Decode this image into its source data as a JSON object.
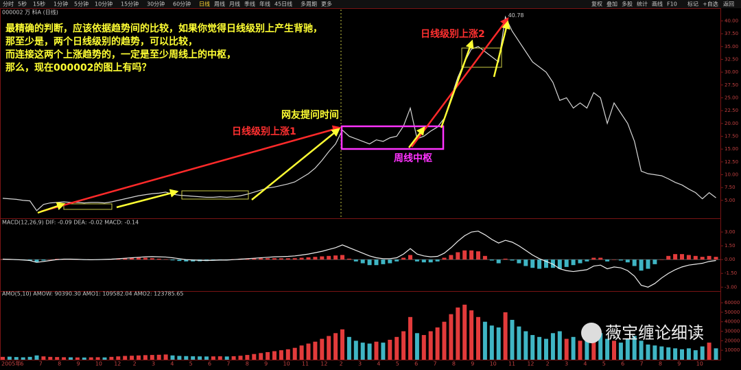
{
  "toolbar": {
    "left": [
      "分时",
      "5秒",
      "15秒",
      "1分钟",
      "5分钟",
      "10分钟",
      "15分钟",
      "30分钟",
      "60分钟",
      "日线",
      "周线",
      "月线",
      "季线",
      "年线",
      "45日线",
      "多周期",
      "更多"
    ],
    "right": [
      "复权",
      "叠加",
      "多股",
      "统计",
      "画线",
      "F10",
      "标记",
      "+自选",
      "返回"
    ]
  },
  "annotations": {
    "question": [
      "最精确的判断，应该依据趋势间的比较，如果你觉得日线级别上产生背驰，",
      "那至少是，两个日线级别的趋势，可以比较，",
      "而连接这两个上涨趋势的，一定是至少周线上的中枢，",
      "那么，现在000002的图上有吗？"
    ],
    "asked": "网友提问时间",
    "rise1": "日线级别上涨1",
    "rise2": "日线级别上涨2",
    "pivot": "周线中枢",
    "watermark": "薇宝缠论细读"
  },
  "time_axis": [
    "2005年",
    "6",
    "7",
    "8",
    "9",
    "10",
    "12",
    "2",
    "3",
    "4",
    "5",
    "6",
    "7",
    "8",
    "9",
    "10",
    "11",
    "12",
    "2",
    "3",
    "4",
    "5",
    "6",
    "7",
    "8",
    "9",
    "10",
    "11",
    "12",
    "2",
    "3",
    "4",
    "5",
    "6",
    "7",
    "8",
    "9",
    "10"
  ],
  "chart_data": [
    {
      "type": "line",
      "title": "000002 万 科A (日线)",
      "color": "#d8d8d8",
      "ylim": [
        1.5,
        42.2
      ],
      "yticks": [
        {
          "value": 5,
          "label": "5.00"
        },
        {
          "value": 7.5,
          "label": "7.50"
        },
        {
          "value": 10,
          "label": "10.00"
        },
        {
          "value": 12.5,
          "label": "12.50"
        },
        {
          "value": 15,
          "label": "15.00"
        },
        {
          "value": 17.5,
          "label": "17.50"
        },
        {
          "value": 20,
          "label": "20.00"
        },
        {
          "value": 22.5,
          "label": "22.50"
        },
        {
          "value": 25,
          "label": "25.00"
        },
        {
          "value": 27.5,
          "label": "27.50"
        },
        {
          "value": 30,
          "label": "30.00"
        },
        {
          "value": 32.5,
          "label": "32.50"
        },
        {
          "value": 35,
          "label": "35.00"
        },
        {
          "value": 37.5,
          "label": "37.50"
        },
        {
          "value": 40,
          "label": "40.00"
        }
      ],
      "values": [
        5.4,
        5.3,
        5.2,
        5.0,
        4.9,
        3.0,
        4.2,
        4.5,
        4.6,
        4.7,
        4.6,
        4.6,
        4.5,
        4.6,
        4.6,
        4.5,
        4.7,
        5.0,
        5.3,
        5.6,
        5.9,
        6.1,
        6.3,
        6.4,
        6.6,
        6.2,
        6.0,
        5.9,
        5.8,
        5.7,
        5.6,
        5.6,
        5.7,
        5.6,
        5.7,
        5.9,
        6.2,
        6.6,
        7.0,
        7.4,
        7.6,
        7.9,
        8.2,
        8.6,
        9.4,
        10.2,
        11.3,
        12.8,
        14.5,
        16.0,
        18.7,
        17.5,
        17.0,
        16.5,
        16.0,
        16.8,
        16.5,
        17.2,
        17.5,
        19.5,
        23.0,
        17.0,
        17.5,
        18.5,
        19.3,
        21,
        25,
        29,
        32,
        34.5,
        35,
        34,
        33,
        32,
        40.78,
        38,
        36,
        34,
        32,
        31,
        30,
        28,
        24.5,
        25,
        23,
        24,
        23,
        26,
        25,
        20,
        24,
        22,
        20,
        16.5,
        10.7,
        10.2,
        10,
        9.8,
        9.2,
        8.5,
        8,
        7.2,
        6.5,
        5.3,
        6.5,
        5.5
      ]
    },
    {
      "type": "bar",
      "title": "MACD(12,26,9) DIF: -0.09 DEA: -0.02 MACD: -0.14",
      "ylim": [
        -3.5,
        3.6
      ],
      "yticks": [
        {
          "value": 3,
          "label": "3.00"
        },
        {
          "value": 1.5,
          "label": "1.50"
        },
        {
          "value": 0,
          "label": "0.00"
        },
        {
          "value": -1.5,
          "label": "-1.50"
        },
        {
          "value": -3,
          "label": "-3.00"
        }
      ],
      "up_color": "#e23b3b",
      "down_color": "#3fb5c4",
      "series": [
        {
          "name": "MACD",
          "type": "bar",
          "values": [
            0.05,
            0.02,
            -0.02,
            -0.06,
            -0.1,
            -0.3,
            -0.1,
            0,
            0.08,
            0.08,
            0.06,
            0.02,
            -0.03,
            -0.05,
            -0.02,
            0.02,
            0.05,
            0.12,
            0.15,
            0.18,
            0.2,
            0.2,
            0.15,
            0.1,
            0.05,
            -0.08,
            -0.15,
            -0.2,
            -0.2,
            -0.18,
            -0.15,
            -0.1,
            -0.05,
            -0.03,
            0.05,
            0.1,
            0.12,
            0.15,
            0.15,
            0.15,
            0.15,
            0.14,
            0.14,
            0.15,
            0.2,
            0.25,
            0.3,
            0.35,
            0.4,
            0.45,
            0.5,
            0.1,
            -0.2,
            -0.4,
            -0.6,
            -0.6,
            -0.5,
            -0.4,
            -0.2,
            0.2,
            0.5,
            -0.2,
            -0.3,
            -0.3,
            -0.2,
            0.2,
            0.5,
            0.8,
            1,
            1,
            0.9,
            0.4,
            -0.1,
            -0.4,
            0.1,
            -0.1,
            -0.4,
            -0.7,
            -0.9,
            -1,
            -0.9,
            -0.9,
            -1,
            -0.8,
            -0.6,
            -0.4,
            -0.2,
            0.2,
            0.2,
            -0.2,
            0,
            -0.1,
            -0.3,
            -0.7,
            -1.2,
            -1,
            -0.5,
            0,
            0.4,
            0.6,
            0.6,
            0.5,
            0.4,
            0.3,
            0.4,
            0.3
          ]
        },
        {
          "name": "DIF",
          "type": "line",
          "color": "#f0f0f0",
          "values": [
            0.05,
            0.03,
            0,
            -0.05,
            -0.1,
            -0.3,
            -0.2,
            -0.1,
            0,
            0.05,
            0.05,
            0.03,
            0,
            -0.02,
            0,
            0.02,
            0.05,
            0.1,
            0.15,
            0.2,
            0.25,
            0.3,
            0.32,
            0.3,
            0.28,
            0.2,
            0.1,
            0,
            -0.05,
            -0.08,
            -0.1,
            -0.08,
            -0.05,
            -0.05,
            0,
            0.05,
            0.1,
            0.15,
            0.2,
            0.25,
            0.3,
            0.32,
            0.35,
            0.4,
            0.5,
            0.6,
            0.75,
            0.9,
            1.1,
            1.3,
            1.6,
            1.3,
            1,
            0.7,
            0.4,
            0.2,
            0.1,
            0.1,
            0.2,
            0.6,
            1.2,
            0.6,
            0.4,
            0.3,
            0.35,
            0.7,
            1.3,
            2,
            2.6,
            3,
            3.1,
            2.7,
            2.2,
            1.8,
            2.1,
            1.9,
            1.5,
            1,
            0.5,
            0.1,
            -0.2,
            -0.5,
            -1,
            -1.2,
            -1.3,
            -1.2,
            -1.1,
            -0.7,
            -0.6,
            -1,
            -0.8,
            -0.9,
            -1.2,
            -1.8,
            -2.8,
            -3,
            -2.6,
            -2,
            -1.5,
            -1.1,
            -0.8,
            -0.6,
            -0.5,
            -0.4,
            -0.2,
            -0.1
          ]
        }
      ]
    },
    {
      "type": "bar",
      "title": "AMO(5,10) AMOW: 90390.30 AMO1: 109582.04 AMO2: 123785.65",
      "ylim": [
        0,
        68000
      ],
      "yticks": [
        10000,
        20000,
        30000,
        40000,
        50000,
        60000
      ],
      "up_color": "#e23b3b",
      "down_color": "#3fb5c4",
      "values": [
        3000,
        3200,
        2800,
        2500,
        3000,
        4500,
        3500,
        3000,
        2800,
        2600,
        2500,
        2400,
        2300,
        2500,
        2600,
        2400,
        3000,
        3500,
        4000,
        4200,
        4500,
        4800,
        5000,
        5200,
        5500,
        4500,
        4000,
        3800,
        3600,
        3500,
        3400,
        3500,
        3600,
        3400,
        3700,
        4200,
        5000,
        6000,
        7000,
        8000,
        9000,
        10000,
        11000,
        12500,
        15000,
        17000,
        19000,
        22000,
        25000,
        28000,
        32000,
        24000,
        20000,
        18000,
        17000,
        19000,
        18000,
        21000,
        24000,
        30000,
        45000,
        28000,
        26000,
        30000,
        34000,
        40000,
        48000,
        55000,
        58000,
        52000,
        45000,
        40000,
        36000,
        34000,
        50000,
        42000,
        35000,
        30000,
        26000,
        24000,
        22000,
        28000,
        30000,
        22000,
        24000,
        20000,
        26000,
        24000,
        28000,
        22000,
        20000,
        18000,
        22000,
        25000,
        20000,
        16000,
        15000,
        14000,
        13000,
        12000,
        11000,
        12000,
        10000,
        14000,
        18000,
        12000
      ]
    }
  ]
}
